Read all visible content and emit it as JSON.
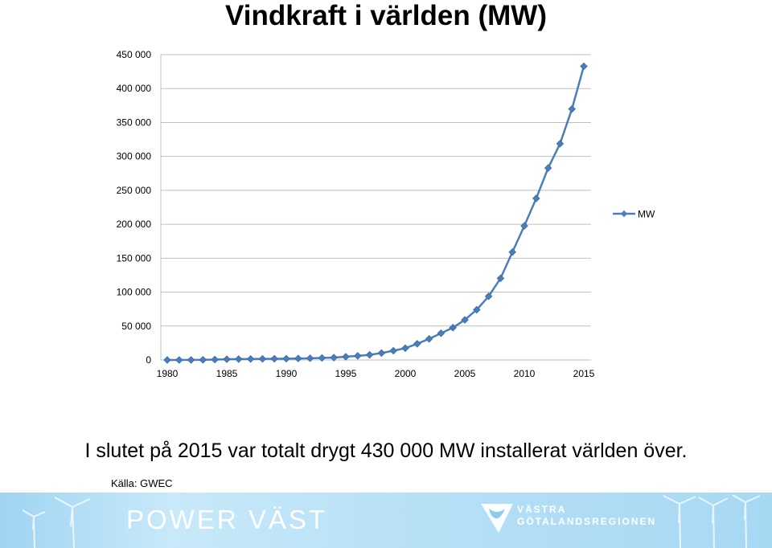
{
  "header": {
    "title": "Vindkraft i världen (MW)"
  },
  "chart_data": {
    "type": "line",
    "title": "Vindkraft i världen (MW)",
    "xlabel": "",
    "ylabel": "",
    "x": [
      1980,
      1981,
      1982,
      1983,
      1984,
      1985,
      1986,
      1987,
      1988,
      1989,
      1990,
      1991,
      1992,
      1993,
      1994,
      1995,
      1996,
      1997,
      1998,
      1999,
      2000,
      2001,
      2002,
      2003,
      2004,
      2005,
      2006,
      2007,
      2008,
      2009,
      2010,
      2011,
      2012,
      2013,
      2014,
      2015
    ],
    "series": [
      {
        "name": "MW",
        "color": "#4a7ebb",
        "marker": "diamond",
        "values": [
          10,
          25,
          90,
          210,
          600,
          1020,
          1270,
          1450,
          1580,
          1730,
          1930,
          2170,
          2510,
          2990,
          3490,
          4780,
          6100,
          7600,
          10200,
          13600,
          17400,
          23900,
          31100,
          39431,
          47620,
          59091,
          74052,
          93820,
          120291,
          158975,
          197637,
          238110,
          282850,
          318697,
          369862,
          432883
        ]
      }
    ],
    "xticks": [
      "1980",
      "1985",
      "1990",
      "1995",
      "2000",
      "2005",
      "2010",
      "2015"
    ],
    "yticks": [
      "0",
      "50 000",
      "100 000",
      "150 000",
      "200 000",
      "250 000",
      "300 000",
      "350 000",
      "400 000",
      "450 000"
    ],
    "ylim": [
      0,
      450000
    ],
    "xlim": [
      1980,
      2015
    ],
    "grid": "horizontal",
    "legend": "right"
  },
  "caption": {
    "text": "I slutet på 2015 var totalt drygt 430 000 MW installerat världen över."
  },
  "source": {
    "text": "Källa: GWEC"
  },
  "footer": {
    "brand": "POWER VÄST",
    "region_line1": "VÄSTRA",
    "region_line2": "GÖTALANDSREGIONEN"
  }
}
